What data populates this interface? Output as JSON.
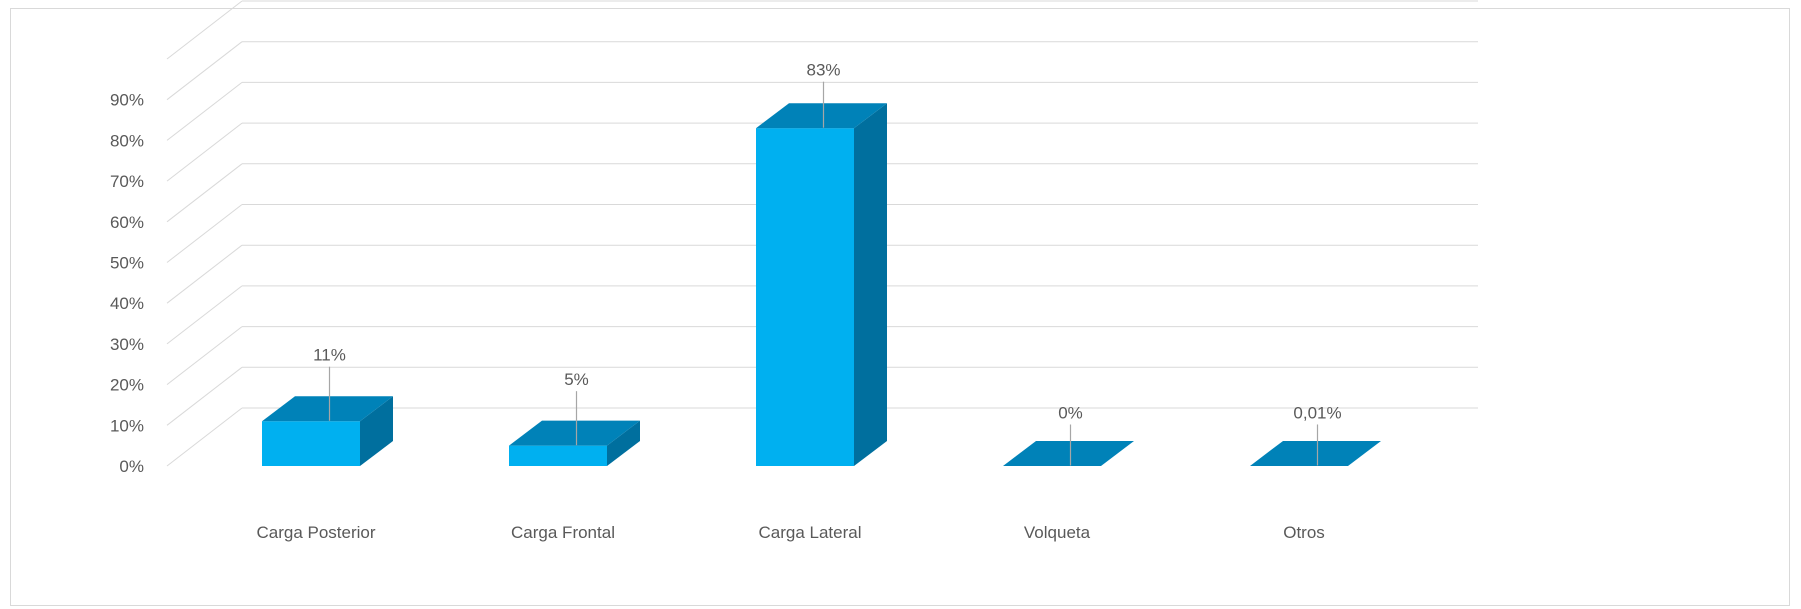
{
  "chart_data": {
    "type": "bar",
    "style": "3d-column",
    "title": "",
    "xlabel": "",
    "ylabel": "",
    "categories": [
      "Carga Posterior",
      "Carga Frontal",
      "Carga Lateral",
      "Volqueta",
      "Otros"
    ],
    "values": [
      11,
      5,
      83,
      0,
      0.01
    ],
    "data_labels": [
      "11%",
      "5%",
      "83%",
      "0%",
      "0,01%"
    ],
    "yticks": [
      "0%",
      "10%",
      "20%",
      "30%",
      "40%",
      "50%",
      "60%",
      "70%",
      "80%",
      "90%"
    ],
    "ylim": [
      0,
      100
    ],
    "grid": true,
    "legend": "none",
    "colors": {
      "front": "#00b0f0",
      "top": "#0082b8",
      "side": "#006f9e",
      "grid": "#d9d9d9",
      "leader": "#a6a6a6",
      "text": "#595959"
    }
  }
}
